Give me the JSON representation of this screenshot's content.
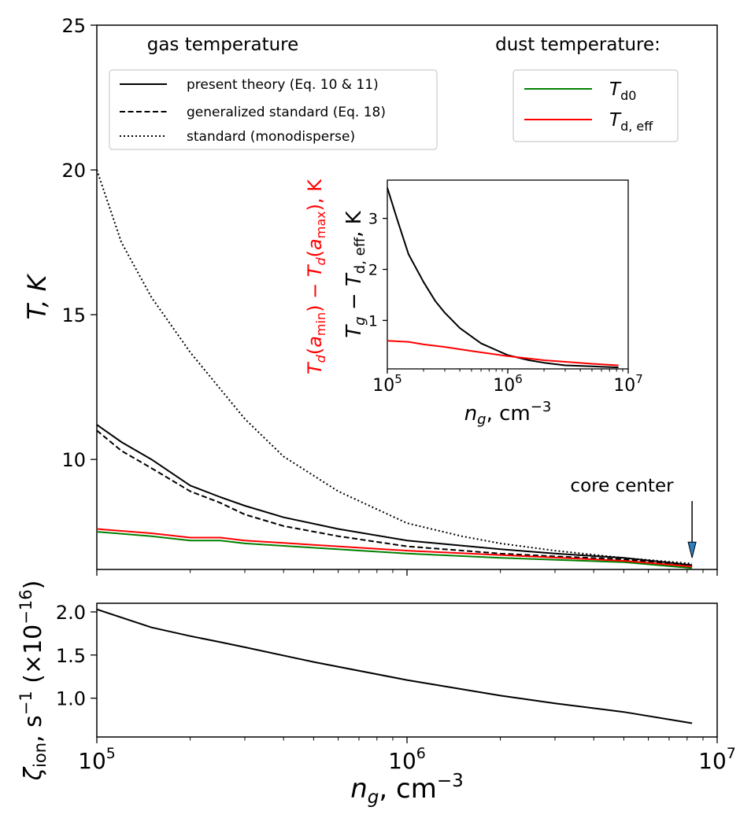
{
  "chart_data": [
    {
      "type": "line",
      "id": "top",
      "xscale": "log",
      "xlim": [
        100000,
        10000000
      ],
      "ylim": [
        6.2,
        25
      ],
      "ylabel": "T, K",
      "ytick_values": [
        10,
        15,
        20,
        25
      ],
      "ytick_labels": [
        "10",
        "15",
        "20",
        "25"
      ],
      "text_gas": "gas temperature",
      "text_dust": "dust temperature:",
      "annotation": "core center",
      "annotation_x": 8300000,
      "annotation_y": 6.6,
      "legend_gas": [
        {
          "label": "present theory (Eq. 10 & 11)",
          "style": "solid"
        },
        {
          "label": "generalized standard (Eq. 18)",
          "style": "dashed"
        },
        {
          "label": "standard (monodisperse)",
          "style": "dotted"
        }
      ],
      "legend_dust": [
        {
          "label_main": "T",
          "label_sub": "d0",
          "color": "#008000"
        },
        {
          "label_main": "T",
          "label_sub": "d, eff",
          "color": "#ff0000"
        }
      ],
      "series": [
        {
          "name": "present theory",
          "color": "#000000",
          "style": "solid",
          "x": [
            100000,
            120000,
            150000,
            200000,
            250000,
            300000,
            400000,
            600000,
            1000000,
            2000000,
            3000000,
            5000000,
            8300000
          ],
          "y": [
            11.2,
            10.6,
            10.0,
            9.1,
            8.7,
            8.4,
            8.0,
            7.6,
            7.2,
            6.9,
            6.75,
            6.6,
            6.35
          ]
        },
        {
          "name": "generalized standard",
          "color": "#000000",
          "style": "dashed",
          "x": [
            100000,
            120000,
            150000,
            200000,
            250000,
            300000,
            400000,
            600000,
            1000000,
            2000000,
            3000000,
            5000000,
            8300000
          ],
          "y": [
            11.0,
            10.3,
            9.7,
            8.9,
            8.5,
            8.1,
            7.7,
            7.35,
            7.0,
            6.75,
            6.65,
            6.55,
            6.3
          ]
        },
        {
          "name": "standard (monodisperse)",
          "color": "#000000",
          "style": "dotted",
          "x": [
            100000,
            120000,
            150000,
            200000,
            300000,
            400000,
            600000,
            1000000,
            1500000,
            2000000,
            3000000,
            5000000,
            8300000
          ],
          "y": [
            20.0,
            17.5,
            15.6,
            13.7,
            11.4,
            10.1,
            8.9,
            7.8,
            7.35,
            7.1,
            6.85,
            6.6,
            6.4
          ]
        },
        {
          "name": "T_d0",
          "color": "#008000",
          "style": "solid",
          "x": [
            100000,
            150000,
            200000,
            250000,
            300000,
            500000,
            1000000,
            2000000,
            5000000,
            8300000
          ],
          "y": [
            7.5,
            7.35,
            7.2,
            7.2,
            7.1,
            6.95,
            6.75,
            6.6,
            6.45,
            6.25
          ]
        },
        {
          "name": "T_d,eff",
          "color": "#ff0000",
          "style": "solid",
          "x": [
            100000,
            150000,
            200000,
            250000,
            300000,
            500000,
            1000000,
            2000000,
            5000000,
            8300000
          ],
          "y": [
            7.6,
            7.45,
            7.3,
            7.3,
            7.2,
            7.05,
            6.85,
            6.7,
            6.5,
            6.3
          ]
        }
      ]
    },
    {
      "type": "line",
      "id": "inset",
      "xscale": "log",
      "xlim": [
        100000,
        10000000
      ],
      "ylim": [
        0.05,
        3.75
      ],
      "xlabel_main": "n",
      "xlabel_sub": "g",
      "xlabel_rest": ", cm",
      "xlabel_sup": "−3",
      "ylabel_black": "T_g − T_d,eff, K",
      "ylabel_red": "T_d(a_min) − T_d(a_max), K",
      "ytick_values": [
        1,
        2,
        3
      ],
      "ytick_labels": [
        "1",
        "2",
        "3"
      ],
      "xtick_labels": [
        {
          "base": "10",
          "exp": "5"
        },
        {
          "base": "10",
          "exp": "6"
        },
        {
          "base": "10",
          "exp": "7"
        }
      ],
      "series": [
        {
          "name": "Tg - Td,eff",
          "color": "#000000",
          "x": [
            100000,
            120000,
            150000,
            200000,
            250000,
            300000,
            400000,
            600000,
            1000000,
            1500000,
            2000000,
            3000000,
            5000000,
            8300000
          ],
          "y": [
            3.6,
            3.0,
            2.3,
            1.75,
            1.38,
            1.15,
            0.85,
            0.55,
            0.32,
            0.22,
            0.17,
            0.12,
            0.1,
            0.08
          ]
        },
        {
          "name": "Td(amin) - Td(amax)",
          "color": "#ff0000",
          "x": [
            100000,
            150000,
            200000,
            300000,
            500000,
            1000000,
            2000000,
            5000000,
            8300000
          ],
          "y": [
            0.6,
            0.58,
            0.53,
            0.48,
            0.4,
            0.3,
            0.22,
            0.15,
            0.12
          ]
        }
      ]
    },
    {
      "type": "line",
      "id": "bottom",
      "xscale": "log",
      "xlim": [
        100000,
        10000000
      ],
      "ylim": [
        0.55,
        2.1
      ],
      "ylabel_main": "ζ",
      "ylabel_sub": "ion",
      "ylabel_rest": ", s",
      "ylabel_sup1": "−1",
      "ylabel_mid": " (×10",
      "ylabel_sup2": "−16",
      "ylabel_end": ")",
      "xlabel_main": "n",
      "xlabel_sub": "g",
      "xlabel_rest": ", cm",
      "xlabel_sup": "−3",
      "ytick_values": [
        1.0,
        1.5,
        2.0
      ],
      "ytick_labels": [
        "1.0",
        "1.5",
        "2.0"
      ],
      "xtick_labels": [
        {
          "base": "10",
          "exp": "5"
        },
        {
          "base": "10",
          "exp": "6"
        },
        {
          "base": "10",
          "exp": "7"
        }
      ],
      "series": [
        {
          "name": "zeta_ion",
          "color": "#000000",
          "x": [
            100000,
            150000,
            200000,
            250000,
            300000,
            500000,
            1000000,
            2000000,
            3000000,
            5000000,
            8300000
          ],
          "y": [
            2.03,
            1.82,
            1.72,
            1.65,
            1.59,
            1.42,
            1.21,
            1.03,
            0.94,
            0.84,
            0.71
          ]
        }
      ]
    }
  ]
}
